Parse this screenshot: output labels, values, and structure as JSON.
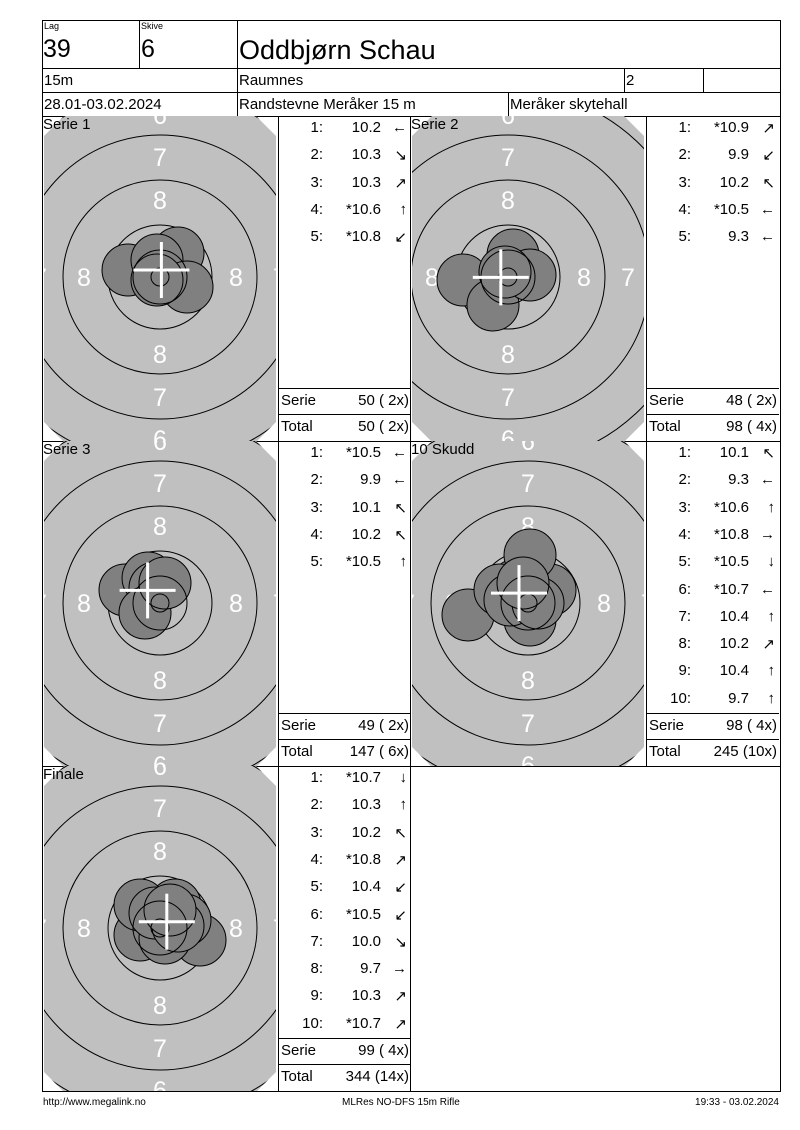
{
  "header": {
    "lag_label": "Lag",
    "lag": "39",
    "skive_label": "Skive",
    "skive": "6",
    "name": "Oddbjørn Schau",
    "distance": "15m",
    "club": "Raumnes",
    "class": "2",
    "extra": "",
    "date": "28.01-03.02.2024",
    "event": "Randstevne Meråker 15 m",
    "venue": "Meråker skytehall"
  },
  "target_labels": {
    "r8": "8",
    "r7": "7",
    "r6": "6"
  },
  "colors": {
    "target": "#c0c0c0",
    "shot": "#808080",
    "marker": "#ffffff"
  },
  "panels": [
    {
      "title": "Serie 1",
      "shots": [
        {
          "n": "1:",
          "v": "10.2",
          "dir": "left"
        },
        {
          "n": "2:",
          "v": "10.3",
          "dir": "down-right"
        },
        {
          "n": "3:",
          "v": "10.3",
          "dir": "up-right"
        },
        {
          "n": "4:",
          "v": "*10.6",
          "dir": "up"
        },
        {
          "n": "5:",
          "v": "*10.8",
          "dir": "down-left"
        }
      ],
      "serie_label": "Serie",
      "serie": "50 ( 2x)",
      "total_label": "Total",
      "total": "50 ( 2x)"
    },
    {
      "title": "Serie 2",
      "shots": [
        {
          "n": "1:",
          "v": "*10.9",
          "dir": "up-right"
        },
        {
          "n": "2:",
          "v": "9.9",
          "dir": "down-left"
        },
        {
          "n": "3:",
          "v": "10.2",
          "dir": "up-left"
        },
        {
          "n": "4:",
          "v": "*10.5",
          "dir": "left"
        },
        {
          "n": "5:",
          "v": "9.3",
          "dir": "left"
        }
      ],
      "serie_label": "Serie",
      "serie": "48 ( 2x)",
      "total_label": "Total",
      "total": "98 ( 4x)"
    },
    {
      "title": "Serie 3",
      "shots": [
        {
          "n": "1:",
          "v": "*10.5",
          "dir": "left"
        },
        {
          "n": "2:",
          "v": "9.9",
          "dir": "left"
        },
        {
          "n": "3:",
          "v": "10.1",
          "dir": "up-left"
        },
        {
          "n": "4:",
          "v": "10.2",
          "dir": "up-left"
        },
        {
          "n": "5:",
          "v": "*10.5",
          "dir": "up"
        }
      ],
      "serie_label": "Serie",
      "serie": "49 ( 2x)",
      "total_label": "Total",
      "total": "147 ( 6x)"
    },
    {
      "title": "10 Skudd",
      "shots": [
        {
          "n": "1:",
          "v": "10.1",
          "dir": "up-left"
        },
        {
          "n": "2:",
          "v": "9.3",
          "dir": "left"
        },
        {
          "n": "3:",
          "v": "*10.6",
          "dir": "up"
        },
        {
          "n": "4:",
          "v": "*10.8",
          "dir": "right"
        },
        {
          "n": "5:",
          "v": "*10.5",
          "dir": "down"
        },
        {
          "n": "6:",
          "v": "*10.7",
          "dir": "left"
        },
        {
          "n": "7:",
          "v": "10.4",
          "dir": "up"
        },
        {
          "n": "8:",
          "v": "10.2",
          "dir": "up-right"
        },
        {
          "n": "9:",
          "v": "10.4",
          "dir": "up"
        },
        {
          "n": "10:",
          "v": "9.7",
          "dir": "up"
        }
      ],
      "serie_label": "Serie",
      "serie": "98 ( 4x)",
      "total_label": "Total",
      "total": "245 (10x)"
    },
    {
      "title": "Finale",
      "shots": [
        {
          "n": "1:",
          "v": "*10.7",
          "dir": "down"
        },
        {
          "n": "2:",
          "v": "10.3",
          "dir": "up"
        },
        {
          "n": "3:",
          "v": "10.2",
          "dir": "up-left"
        },
        {
          "n": "4:",
          "v": "*10.8",
          "dir": "up-right"
        },
        {
          "n": "5:",
          "v": "10.4",
          "dir": "down-left"
        },
        {
          "n": "6:",
          "v": "*10.5",
          "dir": "down-left"
        },
        {
          "n": "7:",
          "v": "10.0",
          "dir": "down-right"
        },
        {
          "n": "8:",
          "v": "9.7",
          "dir": "right"
        },
        {
          "n": "9:",
          "v": "10.3",
          "dir": "up-right"
        },
        {
          "n": "10:",
          "v": "*10.7",
          "dir": "up-right"
        }
      ],
      "serie_label": "Serie",
      "serie": "99 ( 4x)",
      "total_label": "Total",
      "total": "344 (14x)"
    }
  ],
  "footer": {
    "url": "http://www.megalink.no",
    "program": "MLRes NO-DFS 15m Rifle",
    "timestamp": "19:33 - 03.02.2024"
  }
}
